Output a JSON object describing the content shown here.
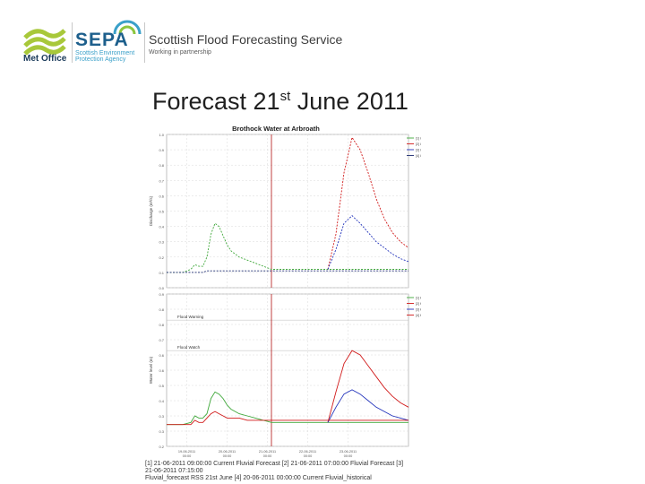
{
  "header": {
    "metoffice_label": "Met Office",
    "sepa_label": "SEPA",
    "sepa_sub_1": "Scottish Environment",
    "sepa_sub_2": "Protection Agency",
    "service_title": "Scottish Flood Forecasting Service",
    "service_sub": "Working in partnership"
  },
  "slide": {
    "title_main": "Forecast 21",
    "title_sup": "st",
    "title_rest": " June 2011"
  },
  "colors": {
    "green": "#3fa83a",
    "red": "#d11a1a",
    "blue": "#2233bb",
    "darkblue": "#1b2a6f",
    "gridline": "#d8d8d8",
    "now_line": "#b01010"
  },
  "chart_data": [
    {
      "type": "line",
      "title": "Brothock Water at Arbroath",
      "x": [
        0,
        0.1,
        0.2,
        0.3,
        0.35,
        0.4,
        0.45,
        0.5,
        0.55,
        0.6,
        0.65,
        0.7,
        0.75,
        0.8,
        0.9,
        1.0,
        1.1,
        1.2,
        1.3,
        1.4,
        1.5,
        1.6,
        1.7,
        1.8,
        1.9,
        2.0,
        2.1,
        2.2,
        2.3,
        2.4,
        2.5,
        2.6,
        2.7,
        2.8,
        2.9,
        3.0
      ],
      "x_tick_labels": [
        "19-06-2011 00:00",
        "20-06-2011 00:00",
        "21-06-2011 00:00",
        "22-06-2011 00:00",
        "23-06-2011 00:00"
      ],
      "x_tick_positions": [
        0.25,
        0.75,
        1.25,
        1.75,
        2.25
      ],
      "series": [
        {
          "name": "[1] Q simulated Forecast Control Arbroath (FOM)",
          "color": "green",
          "values": [
            0.1,
            0.1,
            0.1,
            0.12,
            0.15,
            0.14,
            0.14,
            0.2,
            0.35,
            0.42,
            0.4,
            0.34,
            0.28,
            0.24,
            0.2,
            0.18,
            0.16,
            0.14,
            0.12,
            0.12,
            0.12,
            0.12,
            0.12,
            0.12,
            0.12,
            0.12,
            0.12,
            0.12,
            0.12,
            0.12,
            0.12,
            0.12,
            0.12,
            0.12,
            0.12,
            0.12
          ]
        },
        {
          "name": "[2] Q simulated Forecast Control Arbroath (FOM)",
          "color": "red",
          "values": [
            null,
            null,
            null,
            null,
            null,
            null,
            null,
            null,
            null,
            null,
            null,
            null,
            null,
            null,
            null,
            null,
            null,
            null,
            null,
            null,
            null,
            null,
            null,
            null,
            null,
            0.12,
            0.35,
            0.75,
            0.98,
            0.9,
            0.75,
            0.58,
            0.45,
            0.36,
            0.3,
            0.26
          ]
        },
        {
          "name": "[3] Q simulated Forecast Control Arbroath (FOM)",
          "color": "blue",
          "values": [
            null,
            null,
            null,
            null,
            null,
            null,
            null,
            null,
            null,
            null,
            null,
            null,
            null,
            null,
            null,
            null,
            null,
            null,
            null,
            null,
            null,
            null,
            null,
            null,
            null,
            0.12,
            0.25,
            0.42,
            0.47,
            0.42,
            0.36,
            0.3,
            0.26,
            0.22,
            0.19,
            0.17
          ]
        },
        {
          "name": "[4] Q simulated Forecast Control Arbroath (FOM)",
          "color": "darkblue",
          "values": [
            0.1,
            0.1,
            0.1,
            0.1,
            0.1,
            0.1,
            0.1,
            0.11,
            0.11,
            0.11,
            0.11,
            0.11,
            0.11,
            0.11,
            0.11,
            0.11,
            0.11,
            0.11,
            0.11,
            0.11,
            0.11,
            0.11,
            0.11,
            0.11,
            0.11,
            0.11,
            0.11,
            0.11,
            0.11,
            0.11,
            0.11,
            0.11,
            0.11,
            0.11,
            0.11,
            0.11
          ]
        }
      ],
      "now_x": 1.3,
      "ylim": [
        0,
        1.0
      ],
      "ylabel": "Discharge (m³/s)"
    },
    {
      "type": "line",
      "x_tick_labels": [
        "19-06-2011 00:00",
        "20-06-2011 00:00",
        "21-06-2011 00:00",
        "22-06-2011 00:00",
        "23-06-2011 00:00"
      ],
      "x_tick_positions": [
        0.25,
        0.75,
        1.25,
        1.75,
        2.25
      ],
      "series": [
        {
          "name": "[1] H simulated Forecast Control Arbroath (FOM)",
          "color": "green",
          "values": [
            0.3,
            0.3,
            0.3,
            0.31,
            0.34,
            0.33,
            0.33,
            0.35,
            0.42,
            0.45,
            0.44,
            0.42,
            0.39,
            0.37,
            0.35,
            0.34,
            0.33,
            0.32,
            0.31,
            0.31,
            0.31,
            0.31,
            0.31,
            0.31,
            0.31,
            0.31,
            0.31,
            0.31,
            0.31,
            0.31,
            0.31,
            0.31,
            0.31,
            0.31,
            0.31,
            0.31
          ]
        },
        {
          "name": "[2] H simulated Forecast Control Arbroath (FOM)",
          "color": "red",
          "values": [
            null,
            null,
            null,
            null,
            null,
            null,
            null,
            null,
            null,
            null,
            null,
            null,
            null,
            null,
            null,
            null,
            null,
            null,
            null,
            null,
            null,
            null,
            null,
            null,
            null,
            0.31,
            0.45,
            0.58,
            0.64,
            0.62,
            0.57,
            0.52,
            0.47,
            0.43,
            0.4,
            0.38
          ]
        },
        {
          "name": "[3] H simulated Forecast Control Arbroath (FOM)",
          "color": "blue",
          "values": [
            null,
            null,
            null,
            null,
            null,
            null,
            null,
            null,
            null,
            null,
            null,
            null,
            null,
            null,
            null,
            null,
            null,
            null,
            null,
            null,
            null,
            null,
            null,
            null,
            null,
            0.31,
            0.38,
            0.44,
            0.46,
            0.44,
            0.41,
            0.38,
            0.36,
            0.34,
            0.33,
            0.32
          ]
        },
        {
          "name": "[4] H simulated Forecast Control Arbroath (FOM)",
          "color": "red",
          "values": [
            0.3,
            0.3,
            0.3,
            0.3,
            0.32,
            0.31,
            0.31,
            0.33,
            0.35,
            0.36,
            0.35,
            0.34,
            0.33,
            0.33,
            0.33,
            0.32,
            0.32,
            0.32,
            0.32,
            0.32,
            0.32,
            0.32,
            0.32,
            0.32,
            0.32,
            0.32,
            0.32,
            0.32,
            0.32,
            0.32,
            0.32,
            0.32,
            0.32,
            0.32,
            0.32,
            0.32
          ]
        }
      ],
      "annotations": [
        {
          "label": "Flood Warning",
          "y": 0.78
        },
        {
          "label": "Flood Watch",
          "y": 0.64
        }
      ],
      "now_x": 1.3,
      "ylim": [
        0.2,
        0.9
      ],
      "ylabel": "Water level (m)"
    }
  ],
  "footer": {
    "line1": "[1] 21-06-2011 09:00:00 Current Fluvial Forecast [2] 21-06-2011 07:00:00 Fluvial Forecast [3] 21-06-2011 07:15:00",
    "line2": "Fluvial_forecast RSS 21st June [4] 20-06-2011 00:00:00 Current Fluvial_historical"
  }
}
